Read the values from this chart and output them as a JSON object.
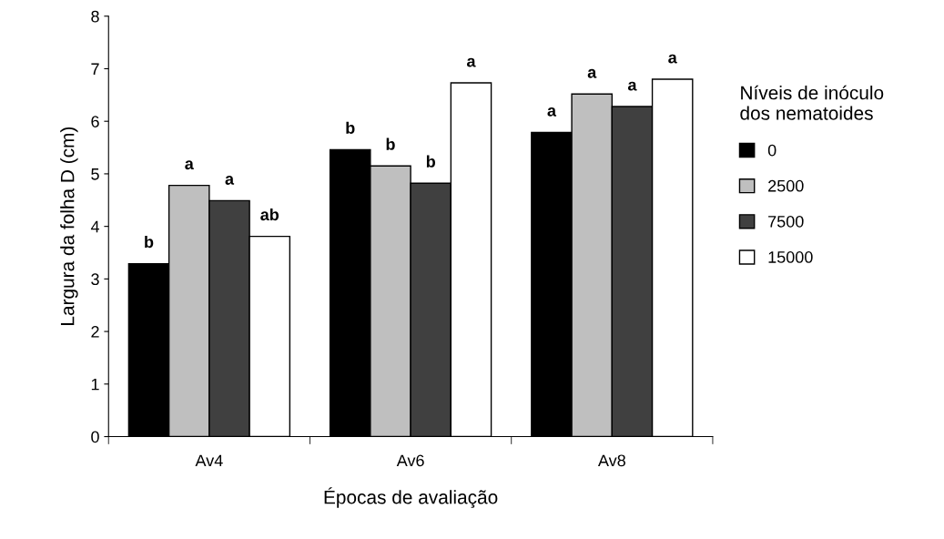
{
  "chart_data": {
    "type": "bar",
    "xlabel": "Épocas de avaliação",
    "ylabel": "Largura da folha D (cm)",
    "legend_title": "Níveis de inóculo\ndos nematoides",
    "categories": [
      "Av4",
      "Av6",
      "Av8"
    ],
    "series": [
      {
        "name": "0",
        "color": "#000000",
        "values": [
          3.29,
          5.46,
          5.79
        ],
        "value_labels": [
          "b",
          "b",
          "a"
        ]
      },
      {
        "name": "2500",
        "color": "#bfbfbf",
        "values": [
          4.78,
          5.15,
          6.52
        ],
        "value_labels": [
          "a",
          "b",
          "a"
        ]
      },
      {
        "name": "7500",
        "color": "#404040",
        "values": [
          4.49,
          4.82,
          6.28
        ],
        "value_labels": [
          "a",
          "b",
          "a"
        ]
      },
      {
        "name": "15000",
        "color": "#ffffff",
        "values": [
          3.81,
          6.73,
          6.8
        ],
        "value_labels": [
          "ab",
          "a",
          "a"
        ]
      }
    ],
    "ylim": [
      0,
      8
    ],
    "yticks": [
      0,
      1,
      2,
      3,
      4,
      5,
      6,
      7,
      8
    ],
    "grid": false,
    "legend": "right"
  }
}
